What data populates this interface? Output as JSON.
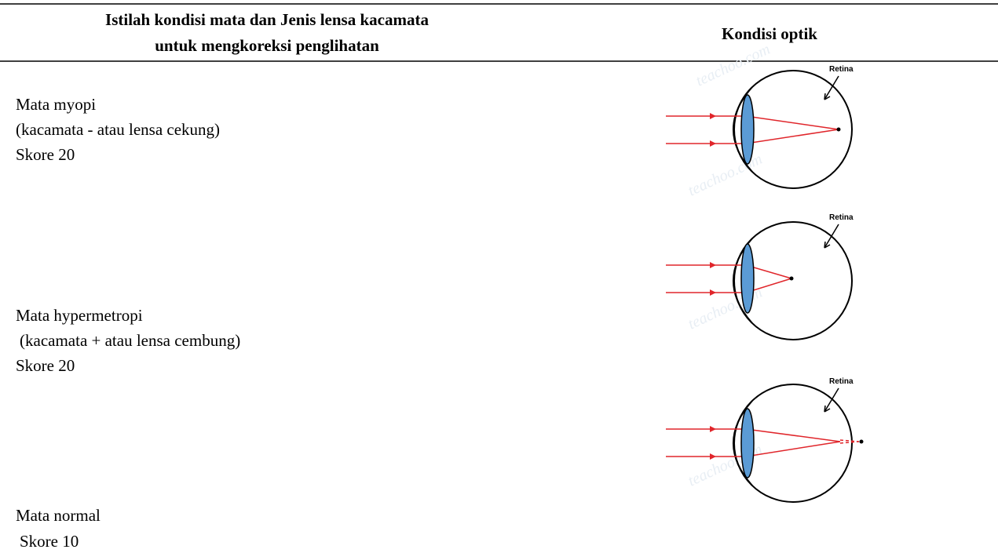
{
  "header": {
    "left": [
      "Istilah kondisi mata dan Jenis lensa kacamata",
      "untuk mengkoreksi penglihatan"
    ],
    "right": "Kondisi optik"
  },
  "rows": [
    {
      "lines": [
        "Mata myopi",
        "(kacamata - atau lensa cekung)",
        "Skore 20"
      ]
    },
    {
      "lines": [
        "Mata hypermetropi",
        "(kacamata + atau lensa cembung)",
        "Skore 20"
      ]
    },
    {
      "lines": [
        "Mata normal",
        "Skore 10"
      ]
    }
  ],
  "diagrams": [
    {
      "label": "Retina"
    },
    {
      "label": "Retina"
    },
    {
      "label": "Retina"
    }
  ],
  "watermark": "teachoo.com"
}
